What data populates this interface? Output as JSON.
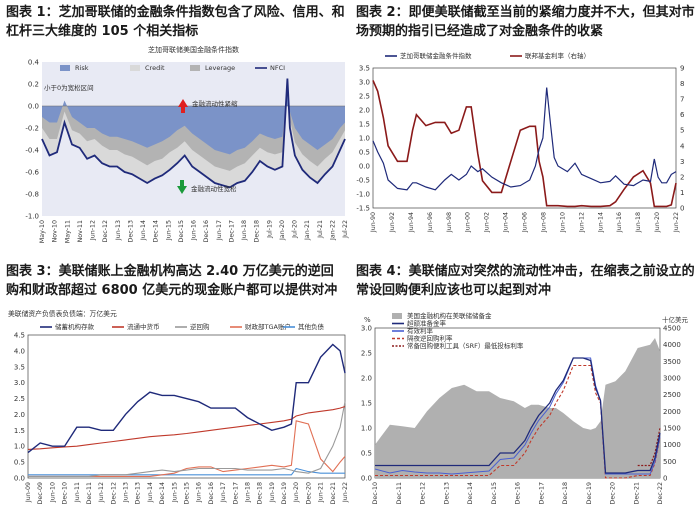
{
  "panels": {
    "p1": {
      "title": "图表 1：芝加哥联储的金融条件指数包含了风险、信用、和杠杆三大维度的 105 个相关指标"
    },
    "p2": {
      "title": "图表 2：即便美联储截至当前的紧缩力度并不大，但其对市场预期的指引已经造成了对金融条件的收紧"
    },
    "p3": {
      "title": "图表 3：美联储账上金融机构高达 2.40 万亿美元的逆回购和财政部超过 6800 亿美元的现金账户都可以提供对冲"
    },
    "p4": {
      "title": "图表 4：美联储应对突然的流动性冲击，在缩表之前设立的常设回购便利应该也可以起到对冲"
    }
  },
  "chart_data": [
    {
      "id": "c1",
      "type": "area",
      "title": "芝加哥联储美国金融条件指数",
      "legend": [
        "Risk",
        "Credit",
        "Leverage",
        "NFCI"
      ],
      "colors": {
        "risk": "#7b93c8",
        "credit": "#d9d9d9",
        "leverage": "#b3b3b3",
        "nfci": "#1f2a7a",
        "bg": "#e8eaf4"
      },
      "annotations": [
        "小于0为宽松区间",
        "金融流动性紧缩",
        "金融流动性宽松"
      ],
      "ylim": [
        -1.0,
        0.4
      ],
      "yticks": [
        -1.0,
        -0.8,
        -0.6,
        -0.4,
        -0.2,
        0.0,
        0.2,
        0.4
      ],
      "xticks": [
        "May-10",
        "Nov-10",
        "May-11",
        "Nov-11",
        "Jun-12",
        "Dec-12",
        "Jun-13",
        "Dec-13",
        "Jun-14",
        "Dec-14",
        "Jun-15",
        "Dec-15",
        "Jun-16",
        "Dec-16",
        "Jun-17",
        "Dec-17",
        "Jun-18",
        "Dec-18",
        "Jul-19",
        "Jan-20",
        "Jul-20",
        "Jan-21",
        "Jul-21",
        "Jan-22",
        "Jul-22"
      ],
      "x": [
        2010.4,
        2010.7,
        2011.0,
        2011.3,
        2011.6,
        2011.9,
        2012.2,
        2012.5,
        2012.8,
        2013.1,
        2013.4,
        2013.7,
        2014.0,
        2014.3,
        2014.6,
        2014.9,
        2015.2,
        2015.5,
        2015.8,
        2016.1,
        2016.4,
        2016.7,
        2017.0,
        2017.3,
        2017.6,
        2017.9,
        2018.2,
        2018.5,
        2018.8,
        2019.1,
        2019.4,
        2019.7,
        2020.0,
        2020.2,
        2020.3,
        2020.5,
        2020.8,
        2021.1,
        2021.4,
        2021.7,
        2022.0,
        2022.3,
        2022.5
      ],
      "series": [
        {
          "name": "NFCI",
          "values": [
            -0.3,
            -0.45,
            -0.42,
            -0.15,
            -0.35,
            -0.38,
            -0.48,
            -0.45,
            -0.52,
            -0.55,
            -0.55,
            -0.6,
            -0.62,
            -0.66,
            -0.7,
            -0.66,
            -0.63,
            -0.58,
            -0.52,
            -0.45,
            -0.55,
            -0.6,
            -0.65,
            -0.7,
            -0.72,
            -0.74,
            -0.7,
            -0.68,
            -0.6,
            -0.5,
            -0.55,
            -0.58,
            -0.55,
            0.25,
            -0.2,
            -0.45,
            -0.58,
            -0.65,
            -0.7,
            -0.62,
            -0.55,
            -0.4,
            -0.3
          ]
        },
        {
          "name": "Credit",
          "values": [
            -0.1,
            -0.15,
            -0.15,
            0.05,
            -0.1,
            -0.15,
            -0.2,
            -0.2,
            -0.25,
            -0.28,
            -0.28,
            -0.3,
            -0.32,
            -0.35,
            -0.38,
            -0.35,
            -0.32,
            -0.28,
            -0.22,
            -0.18,
            -0.25,
            -0.3,
            -0.35,
            -0.4,
            -0.42,
            -0.44,
            -0.4,
            -0.38,
            -0.32,
            -0.25,
            -0.28,
            -0.3,
            -0.28,
            0.15,
            -0.05,
            -0.2,
            -0.3,
            -0.35,
            -0.4,
            -0.35,
            -0.3,
            -0.2,
            -0.15
          ]
        },
        {
          "name": "Leverage",
          "values": [
            -0.2,
            -0.3,
            -0.3,
            -0.05,
            -0.22,
            -0.25,
            -0.32,
            -0.3,
            -0.36,
            -0.4,
            -0.4,
            -0.44,
            -0.46,
            -0.5,
            -0.54,
            -0.5,
            -0.48,
            -0.42,
            -0.38,
            -0.32,
            -0.4,
            -0.45,
            -0.5,
            -0.55,
            -0.57,
            -0.59,
            -0.55,
            -0.52,
            -0.45,
            -0.38,
            -0.42,
            -0.44,
            -0.42,
            0.2,
            -0.12,
            -0.33,
            -0.44,
            -0.5,
            -0.55,
            -0.48,
            -0.42,
            -0.3,
            -0.22
          ]
        }
      ]
    },
    {
      "id": "c2",
      "type": "line",
      "legend": [
        "芝加哥联储金融条件指数",
        "联邦基金利率（右轴）"
      ],
      "colors": {
        "nfci": "#1f2a7a",
        "ffr": "#8b1a1a"
      },
      "ylim": [
        -1.5,
        3.5
      ],
      "yticks": [
        -1.5,
        -1.0,
        -0.5,
        0.0,
        0.5,
        1.0,
        1.5,
        2.0,
        2.5,
        3.0,
        3.5
      ],
      "y2lim": [
        0,
        9
      ],
      "y2ticks": [
        0,
        1,
        2,
        3,
        4,
        5,
        6,
        7,
        8,
        9
      ],
      "xticks": [
        "Jun-90",
        "Jun-92",
        "Jun-94",
        "Jun-96",
        "Jun-98",
        "Jun-00",
        "Jun-02",
        "Jun-04",
        "Jun-06",
        "Jun-08",
        "Jun-10",
        "Jun-12",
        "Jun-14",
        "Jun-16",
        "Jun-18",
        "Jun-20",
        "Jun-22"
      ],
      "x": [
        1990.4,
        1990.9,
        1991.5,
        1992.0,
        1993.0,
        1994.0,
        1994.6,
        1995.0,
        1996.0,
        1997.0,
        1998.0,
        1998.7,
        1999.5,
        2000.3,
        2000.8,
        2001.5,
        2002.0,
        2003.0,
        2004.0,
        2005.0,
        2006.0,
        2007.0,
        2007.6,
        2008.0,
        2008.4,
        2008.8,
        2009.2,
        2009.6,
        2010.0,
        2011.0,
        2011.8,
        2012.5,
        2013.5,
        2014.5,
        2015.5,
        2016.1,
        2017.0,
        2018.0,
        2019.0,
        2019.8,
        2020.2,
        2020.6,
        2021.0,
        2021.5,
        2022.0,
        2022.5
      ],
      "series": [
        {
          "name": "NFCI",
          "values": [
            0.9,
            0.5,
            0.1,
            -0.5,
            -0.8,
            -0.85,
            -0.6,
            -0.6,
            -0.75,
            -0.85,
            -0.5,
            -0.3,
            -0.5,
            -0.3,
            0.0,
            -0.2,
            -0.1,
            -0.4,
            -0.6,
            -0.75,
            -0.7,
            -0.5,
            0.0,
            0.6,
            1.0,
            2.8,
            1.5,
            0.3,
            0.0,
            -0.2,
            0.1,
            -0.3,
            -0.45,
            -0.6,
            -0.55,
            -0.35,
            -0.65,
            -0.7,
            -0.5,
            -0.55,
            0.25,
            -0.4,
            -0.6,
            -0.6,
            -0.3,
            -0.2
          ]
        },
        {
          "name": "FFR",
          "values": [
            8.2,
            7.5,
            5.8,
            4.0,
            3.0,
            3.0,
            5.0,
            6.0,
            5.3,
            5.5,
            5.5,
            4.8,
            5.0,
            6.5,
            6.5,
            3.5,
            1.75,
            1.0,
            1.0,
            3.0,
            5.0,
            5.25,
            5.25,
            3.0,
            2.0,
            0.15,
            0.15,
            0.15,
            0.15,
            0.1,
            0.1,
            0.15,
            0.1,
            0.1,
            0.15,
            0.4,
            1.2,
            2.0,
            2.4,
            1.6,
            0.1,
            0.1,
            0.1,
            0.1,
            0.2,
            1.6
          ]
        }
      ]
    },
    {
      "id": "c3",
      "type": "line",
      "subtitle": "美联储资产负债表负债端：万亿美元",
      "legend": [
        "储蓄机构存款",
        "流通中货币",
        "逆回购",
        "财政部TGA账户",
        "其他负债"
      ],
      "colors": {
        "reserves": "#1f2a7a",
        "currency": "#c0392b",
        "rrp": "#9a9a9a",
        "tga": "#e17055",
        "other": "#4a90d9"
      },
      "ylim": [
        0,
        4.5
      ],
      "yticks": [
        0.0,
        0.5,
        1.0,
        1.5,
        2.0,
        2.5,
        3.0,
        3.5,
        4.0,
        4.5
      ],
      "xticks": [
        "Jun-09",
        "Dec-09",
        "Jun-10",
        "Dec-10",
        "Jun-11",
        "Dec-11",
        "Jun-12",
        "Dec-12",
        "Jun-13",
        "Dec-13",
        "Jun-14",
        "Dec-14",
        "Jun-15",
        "Dec-15",
        "Jun-16",
        "Dec-16",
        "Jun-17",
        "Dec-17",
        "Jun-18",
        "Dec-18",
        "Jun-19",
        "Dec-19",
        "Jun-20",
        "Dec-20",
        "Jun-21",
        "Dec-21",
        "Jun-22"
      ],
      "x": [
        2009.4,
        2009.9,
        2010.4,
        2010.9,
        2011.4,
        2011.9,
        2012.4,
        2012.9,
        2013.4,
        2013.9,
        2014.4,
        2014.9,
        2015.4,
        2015.9,
        2016.4,
        2016.9,
        2017.4,
        2017.9,
        2018.4,
        2018.9,
        2019.4,
        2019.9,
        2020.2,
        2020.4,
        2020.9,
        2021.4,
        2021.9,
        2022.2,
        2022.4
      ],
      "series": [
        {
          "name": "储蓄机构存款",
          "values": [
            0.8,
            1.1,
            1.0,
            1.0,
            1.6,
            1.6,
            1.5,
            1.5,
            2.0,
            2.4,
            2.7,
            2.6,
            2.6,
            2.5,
            2.4,
            2.2,
            2.2,
            2.2,
            1.9,
            1.7,
            1.5,
            1.6,
            1.7,
            3.0,
            3.0,
            3.8,
            4.2,
            4.0,
            3.3
          ]
        },
        {
          "name": "流通中货币",
          "values": [
            0.9,
            0.92,
            0.95,
            0.98,
            1.0,
            1.05,
            1.1,
            1.15,
            1.2,
            1.25,
            1.3,
            1.33,
            1.36,
            1.4,
            1.45,
            1.5,
            1.55,
            1.6,
            1.65,
            1.7,
            1.75,
            1.8,
            1.85,
            1.95,
            2.05,
            2.1,
            2.15,
            2.2,
            2.25
          ]
        },
        {
          "name": "逆回购",
          "values": [
            0.05,
            0.05,
            0.05,
            0.05,
            0.05,
            0.05,
            0.1,
            0.1,
            0.1,
            0.15,
            0.2,
            0.25,
            0.2,
            0.25,
            0.3,
            0.3,
            0.3,
            0.3,
            0.25,
            0.25,
            0.25,
            0.3,
            0.25,
            0.2,
            0.15,
            0.3,
            1.0,
            1.6,
            2.4
          ]
        },
        {
          "name": "财政部TGA账户",
          "values": [
            0.05,
            0.05,
            0.05,
            0.05,
            0.05,
            0.05,
            0.05,
            0.05,
            0.05,
            0.05,
            0.05,
            0.1,
            0.15,
            0.3,
            0.35,
            0.35,
            0.2,
            0.25,
            0.3,
            0.35,
            0.4,
            0.35,
            0.4,
            1.8,
            1.7,
            0.6,
            0.2,
            0.5,
            0.68
          ]
        },
        {
          "name": "其他负债",
          "values": [
            0.1,
            0.1,
            0.1,
            0.1,
            0.1,
            0.1,
            0.1,
            0.1,
            0.1,
            0.1,
            0.1,
            0.1,
            0.1,
            0.1,
            0.1,
            0.1,
            0.1,
            0.1,
            0.1,
            0.1,
            0.1,
            0.1,
            0.1,
            0.3,
            0.2,
            0.15,
            0.15,
            0.15,
            0.15
          ]
        }
      ]
    },
    {
      "id": "c4",
      "type": "line",
      "legend": [
        "美国金融机构在美联储储备金",
        "超额准备金率",
        "有效利率",
        "隔夜逆回购利率",
        "常备回购便利工具（SRF）最低投标利率"
      ],
      "colors": {
        "reserves": "#b0b0b0",
        "ioer": "#1f2a7a",
        "effr": "#4a5fd0",
        "onrrp": "#c0392b",
        "srf": "#8b1a1a"
      },
      "units": [
        "%",
        "十亿美元"
      ],
      "ylim": [
        0,
        3
      ],
      "yticks": [
        0.0,
        0.5,
        1.0,
        1.5,
        2.0,
        2.5,
        3.0
      ],
      "y2lim": [
        0,
        4500
      ],
      "y2ticks": [
        0,
        500,
        1000,
        1500,
        2000,
        2500,
        3000,
        3500,
        4000,
        4500
      ],
      "xticks": [
        "Dec-10",
        "Dec-11",
        "Dec-12",
        "Dec-13",
        "Dec-14",
        "Dec-15",
        "Dec-16",
        "Dec-17",
        "Dec-18",
        "Dec-19",
        "Dec-20",
        "Dec-21",
        "Dec-22"
      ],
      "x": [
        2010.9,
        2011.5,
        2012.0,
        2012.5,
        2013.0,
        2013.5,
        2014.0,
        2014.5,
        2015.0,
        2015.5,
        2015.95,
        2016.5,
        2016.95,
        2017.2,
        2017.5,
        2017.95,
        2018.2,
        2018.5,
        2018.9,
        2019.3,
        2019.6,
        2019.8,
        2020.0,
        2020.2,
        2020.6,
        2021.0,
        2021.5,
        2022.0,
        2022.2,
        2022.4
      ],
      "series": [
        {
          "name": "储备金",
          "values": [
            1000,
            1600,
            1550,
            1500,
            2000,
            2400,
            2700,
            2800,
            2600,
            2600,
            2400,
            2300,
            2100,
            2200,
            2200,
            2100,
            2100,
            1950,
            1700,
            1500,
            1450,
            1500,
            1700,
            2800,
            2900,
            3200,
            3900,
            4000,
            4200,
            3800
          ]
        },
        {
          "name": "超额准备金率",
          "values": [
            0.25,
            0.25,
            0.25,
            0.25,
            0.25,
            0.25,
            0.25,
            0.25,
            0.25,
            0.25,
            0.5,
            0.5,
            0.75,
            1.0,
            1.25,
            1.5,
            1.75,
            1.95,
            2.4,
            2.4,
            2.35,
            1.8,
            1.55,
            0.1,
            0.1,
            0.1,
            0.15,
            0.15,
            0.4,
            0.9
          ]
        },
        {
          "name": "有效利率",
          "values": [
            0.18,
            0.1,
            0.15,
            0.12,
            0.1,
            0.1,
            0.08,
            0.1,
            0.12,
            0.14,
            0.37,
            0.4,
            0.66,
            0.9,
            1.15,
            1.42,
            1.68,
            1.91,
            2.4,
            2.4,
            2.4,
            1.85,
            1.55,
            0.08,
            0.08,
            0.08,
            0.08,
            0.08,
            0.33,
            0.83
          ]
        },
        {
          "name": "隔夜逆回购利率",
          "values": [
            0.05,
            0.05,
            0.05,
            0.05,
            0.05,
            0.05,
            0.05,
            0.05,
            0.05,
            0.05,
            0.25,
            0.25,
            0.5,
            0.75,
            1.0,
            1.25,
            1.5,
            1.75,
            2.25,
            2.25,
            2.25,
            1.7,
            1.5,
            0.0,
            0.0,
            0.0,
            0.05,
            0.05,
            0.3,
            0.8
          ]
        },
        {
          "name": "SRF最低投标利率",
          "values": [
            null,
            null,
            null,
            null,
            null,
            null,
            null,
            null,
            null,
            null,
            null,
            null,
            null,
            null,
            null,
            null,
            null,
            null,
            null,
            null,
            null,
            null,
            null,
            null,
            null,
            null,
            0.25,
            0.25,
            0.5,
            1.0
          ]
        }
      ]
    }
  ]
}
